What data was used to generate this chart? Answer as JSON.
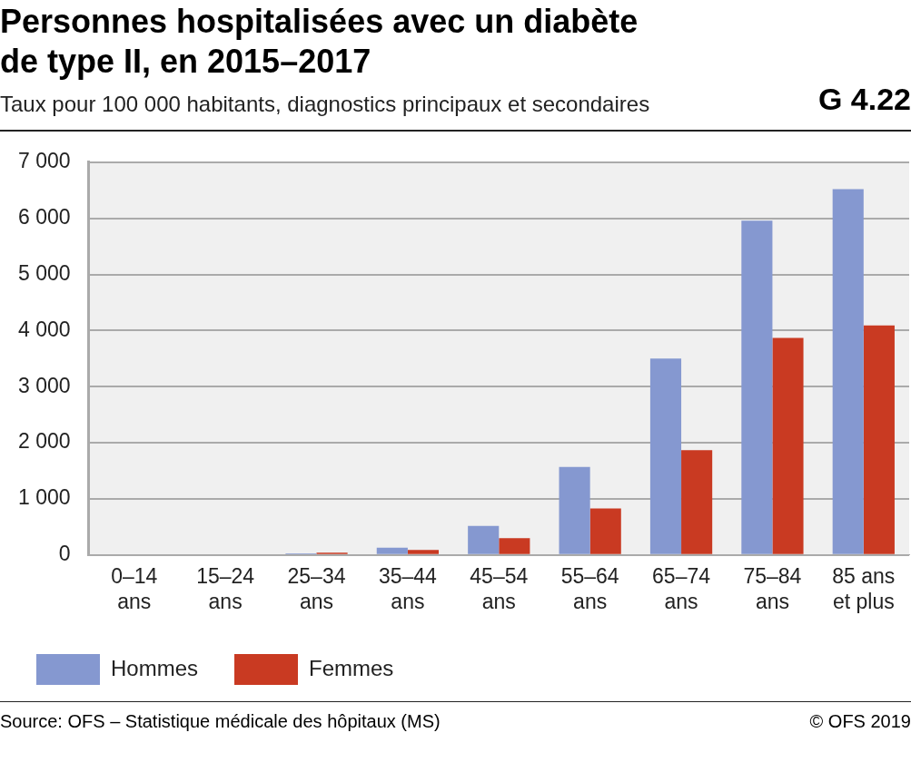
{
  "chart_data": {
    "type": "bar",
    "title": "Personnes hospitalisées avec un diabète de type II, en 2015–2017",
    "subtitle": "Taux pour 100 000 habitants, diagnostics principaux et secondaires",
    "categories": [
      "0–14 ans",
      "15–24 ans",
      "25–34 ans",
      "35–44 ans",
      "45–54 ans",
      "55–64 ans",
      "65–74 ans",
      "75–84 ans",
      "85 ans et plus"
    ],
    "series": [
      {
        "name": "Hommes",
        "color": "#8598d0",
        "values": [
          0,
          0,
          30,
          130,
          520,
          1570,
          3500,
          5960,
          6520
        ]
      },
      {
        "name": "Femmes",
        "color": "#c93a22",
        "values": [
          0,
          0,
          40,
          90,
          300,
          830,
          1870,
          3870,
          4090
        ]
      }
    ],
    "ylim": [
      0,
      7000
    ],
    "yticks": [
      {
        "value": 0,
        "label": "0"
      },
      {
        "value": 1000,
        "label": "1 000"
      },
      {
        "value": 2000,
        "label": "2 000"
      },
      {
        "value": 3000,
        "label": "3 000"
      },
      {
        "value": 4000,
        "label": "4 000"
      },
      {
        "value": 5000,
        "label": "5 000"
      },
      {
        "value": 6000,
        "label": "6 000"
      },
      {
        "value": 7000,
        "label": "7 000"
      }
    ],
    "grid": "y",
    "legend": "bottom left",
    "annotations": [
      "G 4.22",
      "Source: OFS – Statistique médicale des hôpitaux (MS)",
      "© OFS 2019"
    ]
  }
}
